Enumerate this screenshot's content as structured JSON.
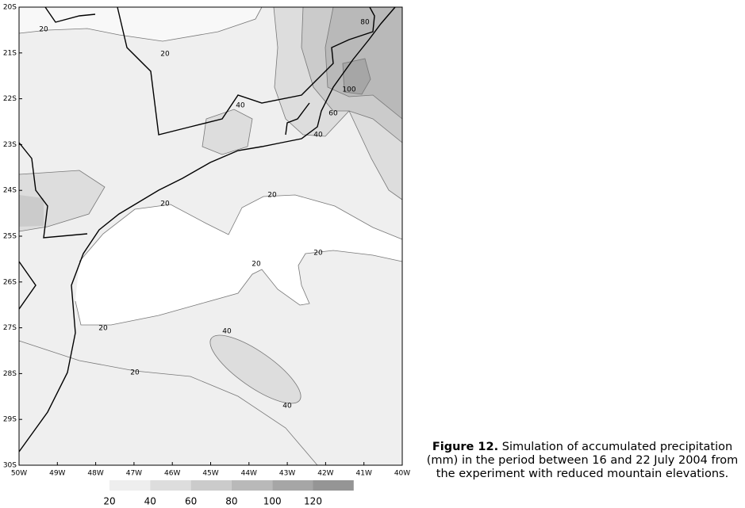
{
  "map": {
    "yticks": [
      {
        "value": -20,
        "label": "20S"
      },
      {
        "value": -21,
        "label": "21S"
      },
      {
        "value": -22,
        "label": "22S"
      },
      {
        "value": -23,
        "label": "23S"
      },
      {
        "value": -24,
        "label": "24S"
      },
      {
        "value": -25,
        "label": "25S"
      },
      {
        "value": -26,
        "label": "26S"
      },
      {
        "value": -27,
        "label": "27S"
      },
      {
        "value": -28,
        "label": "28S"
      },
      {
        "value": -29,
        "label": "29S"
      },
      {
        "value": -30,
        "label": "30S"
      }
    ],
    "xticks": [
      {
        "value": -50,
        "label": "50W"
      },
      {
        "value": -49,
        "label": "49W"
      },
      {
        "value": -48,
        "label": "48W"
      },
      {
        "value": -47,
        "label": "47W"
      },
      {
        "value": -46,
        "label": "46W"
      },
      {
        "value": -45,
        "label": "45W"
      },
      {
        "value": -44,
        "label": "44W"
      },
      {
        "value": -43,
        "label": "43W"
      },
      {
        "value": -42,
        "label": "42W"
      },
      {
        "value": -41,
        "label": "41W"
      },
      {
        "value": -40,
        "label": "40W"
      }
    ],
    "ylim": [
      -30,
      -20
    ],
    "xlim": [
      -50,
      -40
    ],
    "contour_labels": [
      "20",
      "20",
      "40",
      "60",
      "40",
      "80",
      "100",
      "20",
      "20",
      "20",
      "20",
      "20",
      "40",
      "20",
      "40"
    ],
    "colorbar": {
      "ticks": [
        20,
        40,
        60,
        80,
        100,
        120
      ],
      "colors": [
        "#eeeeee",
        "#dddddd",
        "#cbcbcb",
        "#b9b9b9",
        "#a6a6a6",
        "#959595"
      ]
    }
  },
  "caption": {
    "label": "Figure 12.",
    "text": "Simulation of accumulated precipitation (mm) in the period between 16 and 22 July 2004 from the experiment with reduced mountain elevations."
  }
}
